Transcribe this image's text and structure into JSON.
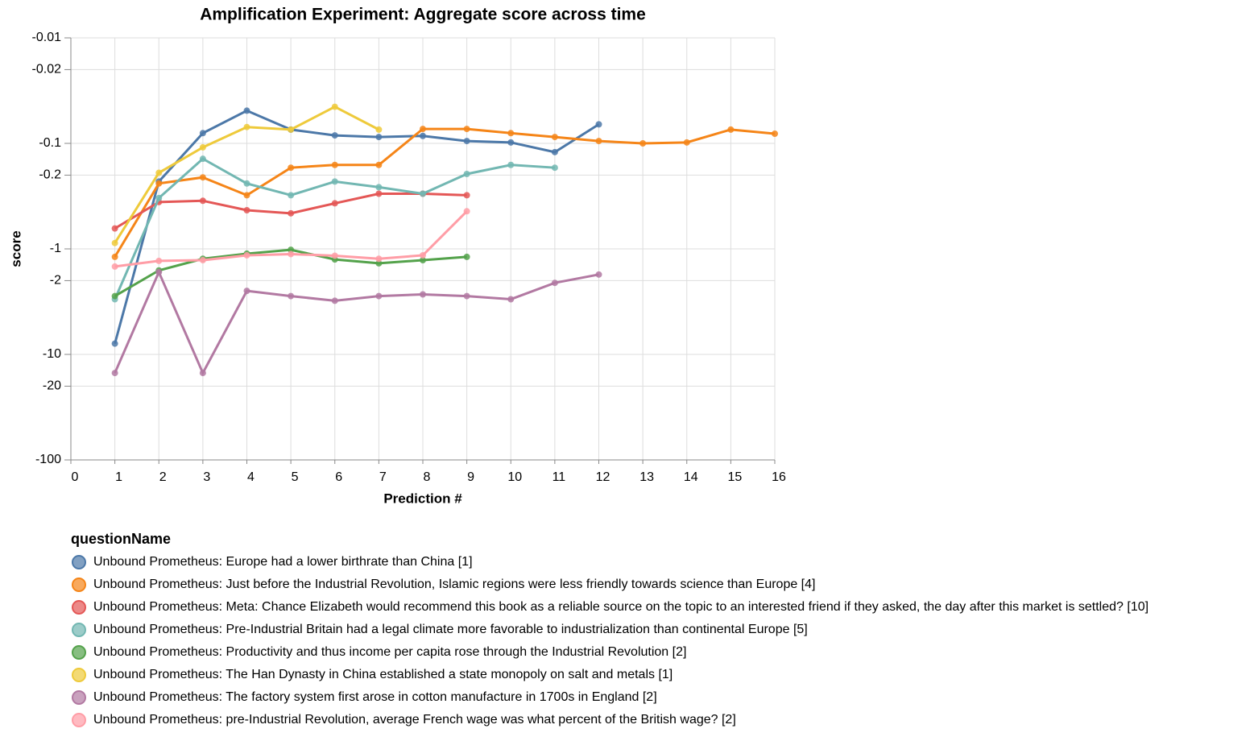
{
  "chart_data": {
    "type": "line",
    "title": "Amplification Experiment: Aggregate score across time",
    "x_label": "Prediction #",
    "y_label": "score",
    "legend_title": "questionName",
    "y_scale": "log",
    "grid": true,
    "xlim": [
      0,
      16
    ],
    "xticks": [
      0,
      1,
      2,
      3,
      4,
      5,
      6,
      7,
      8,
      9,
      10,
      11,
      12,
      13,
      14,
      15,
      16
    ],
    "ylim": [
      -0.01,
      -100
    ],
    "yticks": [
      -0.01,
      -0.02,
      -0.1,
      -0.2,
      -1,
      -2,
      -10,
      -20,
      -100
    ],
    "x": [
      1,
      2,
      3,
      4,
      5,
      6,
      7,
      8,
      9,
      10,
      11,
      12,
      13,
      14,
      15,
      16
    ],
    "series": [
      {
        "name": "Unbound Prometheus: Europe had a lower birthrate than China [1]",
        "color": "#4c78a8",
        "values": [
          -7.9,
          -0.23,
          -0.08,
          -0.049,
          -0.074,
          -0.084,
          -0.087,
          -0.085,
          -0.095,
          -0.098,
          -0.121,
          -0.066,
          null,
          null,
          null,
          null
        ]
      },
      {
        "name": "Unbound Prometheus: Just before the Industrial Revolution, Islamic regions were less friendly towards science than Europe [4]",
        "color": "#f58518",
        "values": [
          -1.19,
          -0.24,
          -0.21,
          -0.31,
          -0.17,
          -0.16,
          -0.16,
          -0.073,
          -0.073,
          -0.08,
          -0.087,
          -0.095,
          -0.1,
          -0.098,
          -0.074,
          -0.081
        ]
      },
      {
        "name": "Unbound Prometheus: Meta: Chance Elizabeth would recommend this book as a reliable source on the topic to an interested friend if they asked, the day after this market is settled? [10]",
        "color": "#e45756",
        "values": [
          -0.64,
          -0.36,
          -0.35,
          -0.43,
          -0.46,
          -0.37,
          -0.3,
          -0.3,
          -0.31,
          null,
          null,
          null,
          null,
          null,
          null,
          null
        ]
      },
      {
        "name": "Unbound Prometheus: Pre-Industrial Britain had a legal climate more favorable to industrialization than continental Europe [5]",
        "color": "#72b7b2",
        "values": [
          -3.0,
          -0.33,
          -0.14,
          -0.24,
          -0.31,
          -0.23,
          -0.26,
          -0.3,
          -0.195,
          -0.16,
          -0.17,
          null,
          null,
          null,
          null,
          null
        ]
      },
      {
        "name": "Unbound Prometheus: Productivity and thus income per capita rose through the Industrial Revolution [2]",
        "color": "#54a24b",
        "values": [
          -2.8,
          -1.6,
          -1.24,
          -1.11,
          -1.02,
          -1.26,
          -1.37,
          -1.28,
          -1.19,
          null,
          null,
          null,
          null,
          null,
          null,
          null
        ]
      },
      {
        "name": "Unbound Prometheus: The Han Dynasty in China established a state monopoly on salt and metals [1]",
        "color": "#eeca3b",
        "values": [
          -0.88,
          -0.19,
          -0.109,
          -0.07,
          -0.074,
          -0.045,
          -0.074,
          null,
          null,
          null,
          null,
          null,
          null,
          null,
          null,
          null
        ]
      },
      {
        "name": "Unbound Prometheus: The factory system first arose in cotton manufacture in 1700s in England [2]",
        "color": "#b279a2",
        "values": [
          -15,
          -1.66,
          -15,
          -2.5,
          -2.8,
          -3.1,
          -2.8,
          -2.7,
          -2.8,
          -3.0,
          -2.1,
          -1.75,
          null,
          null,
          null,
          null
        ]
      },
      {
        "name": "Unbound Prometheus: pre-Industrial Revolution, average French wage was what percent of the British wage? [2]",
        "color": "#ff9da6",
        "values": [
          -1.47,
          -1.3,
          -1.28,
          -1.15,
          -1.12,
          -1.16,
          -1.24,
          -1.15,
          -0.44,
          null,
          null,
          null,
          null,
          null,
          null,
          null
        ]
      }
    ]
  }
}
